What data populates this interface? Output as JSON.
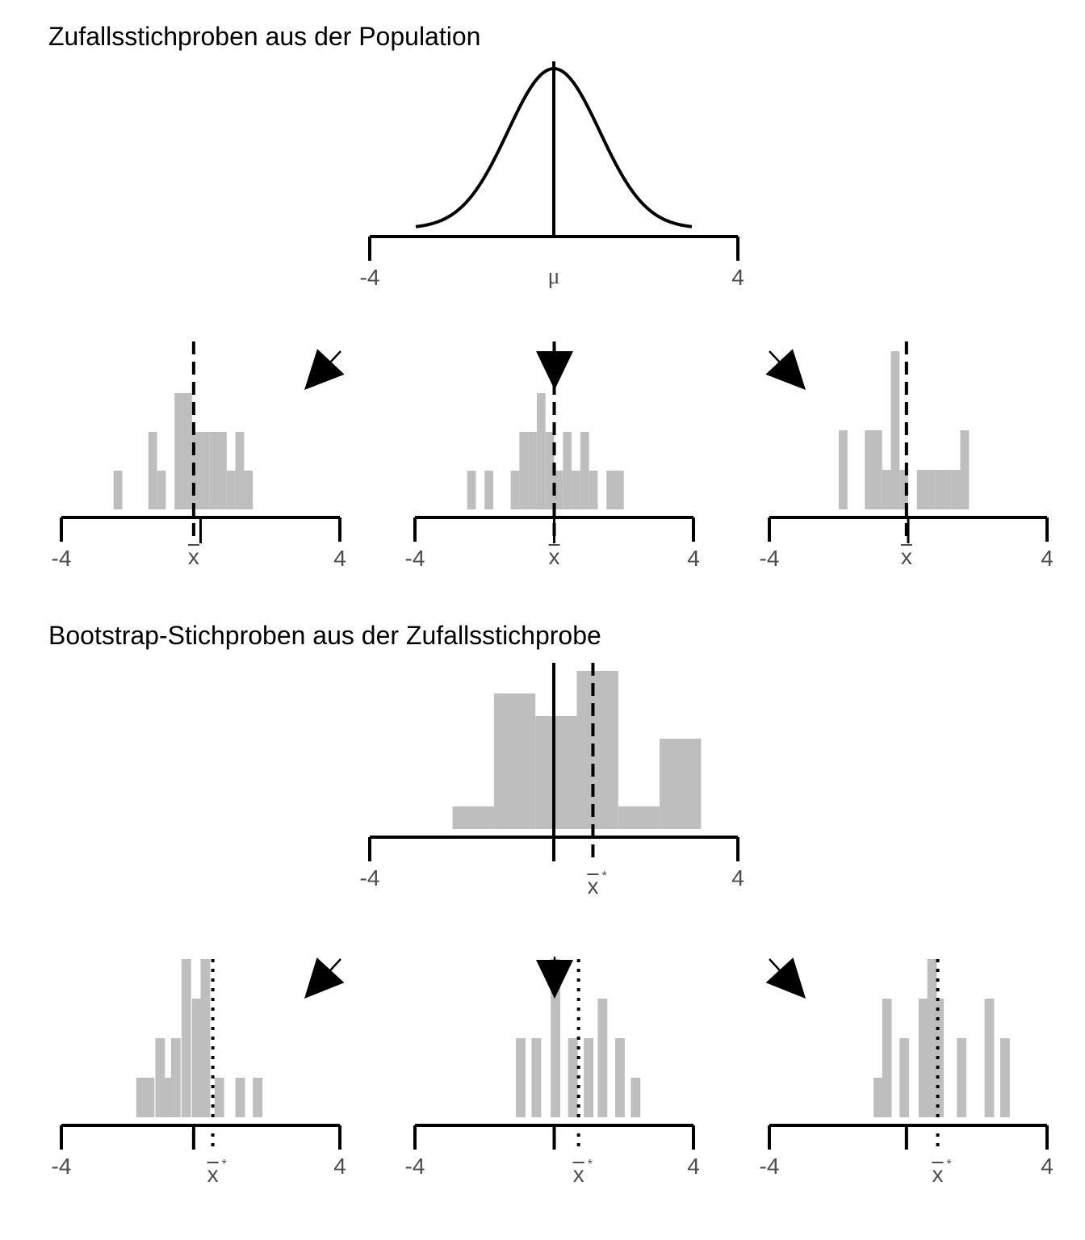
{
  "titles": {
    "top": "Zufallsstichproben aus der Population",
    "bottom": "Bootstrap-Stichproben aus der Zufallsstichprobe"
  },
  "axis": {
    "min_label": "-4",
    "max_label": "4",
    "range": [
      -4,
      4
    ]
  },
  "symbols": {
    "mu": "μ",
    "xbar": "x",
    "xbar_star": "x",
    "star": "*"
  },
  "colors": {
    "bar": "#bebebe",
    "line": "#000000",
    "tick_text": "#4d4d4d"
  },
  "chart_data": [
    {
      "id": "population",
      "type": "line",
      "title": "Zufallsstichproben aus der Population",
      "curve": "normal density (mean 0, sd 1)",
      "x_range": [
        -3,
        3
      ],
      "mean_line": 0,
      "mean_label": "μ",
      "xlim": [
        -4,
        4
      ]
    },
    {
      "id": "sample-1",
      "type": "bar",
      "bin_width": 0.25,
      "bins": [
        [
          -2.5,
          1
        ],
        [
          -1.5,
          2
        ],
        [
          -1.25,
          1
        ],
        [
          -0.75,
          3
        ],
        [
          -0.5,
          3
        ],
        [
          -0.25,
          2
        ],
        [
          0,
          2
        ],
        [
          0.25,
          2
        ],
        [
          0.5,
          2
        ],
        [
          0.75,
          1
        ],
        [
          1,
          2
        ],
        [
          1.25,
          1
        ]
      ],
      "sample_mean": -0.2,
      "pop_mean": 0,
      "xbar_label": "x",
      "xlim": [
        -4,
        4
      ]
    },
    {
      "id": "sample-2",
      "type": "bar",
      "bin_width": 0.25,
      "bins": [
        [
          -2.5,
          1
        ],
        [
          -2,
          1
        ],
        [
          -1.25,
          1
        ],
        [
          -1,
          2
        ],
        [
          -0.75,
          2
        ],
        [
          -0.5,
          3
        ],
        [
          -0.25,
          2
        ],
        [
          0,
          1
        ],
        [
          0.25,
          2
        ],
        [
          0.5,
          1
        ],
        [
          0.75,
          2
        ],
        [
          1,
          1
        ],
        [
          1.5,
          1
        ],
        [
          1.75,
          1
        ]
      ],
      "sample_mean": 0,
      "pop_mean": 0,
      "xbar_label": "x",
      "xlim": [
        -4,
        4
      ]
    },
    {
      "id": "sample-3",
      "type": "bar",
      "bin_width": 0.25,
      "bins": [
        [
          -2,
          2
        ],
        [
          -1.25,
          2
        ],
        [
          -1,
          2
        ],
        [
          -0.75,
          1
        ],
        [
          -0.5,
          4
        ],
        [
          -0.25,
          1
        ],
        [
          0.25,
          1
        ],
        [
          0.5,
          1
        ],
        [
          0.75,
          1
        ],
        [
          1,
          1
        ],
        [
          1.25,
          1
        ],
        [
          1.5,
          2
        ]
      ],
      "sample_mean": -0.05,
      "pop_mean": 0,
      "xbar_label": "x",
      "xlim": [
        -4,
        4
      ]
    },
    {
      "id": "bootstrap-source",
      "type": "bar",
      "bin_width": 0.9,
      "bins": [
        [
          -2.2,
          1
        ],
        [
          -1.3,
          6
        ],
        [
          -0.4,
          5
        ],
        [
          0.5,
          7
        ],
        [
          1.4,
          1
        ],
        [
          2.3,
          4
        ]
      ],
      "pop_mean": 0,
      "sample_mean": 0.85,
      "xbar_label": "x",
      "star": "*",
      "xlim": [
        -4,
        4
      ]
    },
    {
      "id": "bootstrap-1",
      "type": "bar",
      "bin_width": 0.275,
      "bins": [
        [
          -1.85,
          1
        ],
        [
          -1.6,
          1
        ],
        [
          -1.3,
          2
        ],
        [
          -1.05,
          1
        ],
        [
          -0.85,
          2
        ],
        [
          -0.55,
          4
        ],
        [
          -0.25,
          3
        ],
        [
          0,
          4
        ],
        [
          0.4,
          1
        ],
        [
          1,
          1
        ],
        [
          1.5,
          1
        ]
      ],
      "sample_mean": -0.2,
      "boot_mean": 0.35,
      "xbar_label": "x",
      "star": "*",
      "xlim": [
        -4,
        4
      ]
    },
    {
      "id": "bootstrap-2",
      "type": "bar",
      "bin_width": 0.275,
      "bins": [
        [
          -1.1,
          2
        ],
        [
          -0.65,
          2
        ],
        [
          -0.1,
          4
        ],
        [
          0.4,
          2
        ],
        [
          0.85,
          2
        ],
        [
          1.25,
          3
        ],
        [
          1.75,
          2
        ],
        [
          2.2,
          1
        ]
      ],
      "sample_mean": 0,
      "boot_mean": 0.7,
      "xbar_label": "x",
      "star": "*",
      "xlim": [
        -4,
        4
      ]
    },
    {
      "id": "bootstrap-3",
      "type": "bar",
      "bin_width": 0.275,
      "bins": [
        [
          -1,
          1
        ],
        [
          -0.75,
          3
        ],
        [
          -0.25,
          2
        ],
        [
          0.3,
          3
        ],
        [
          0.55,
          4
        ],
        [
          0.75,
          3
        ],
        [
          1.4,
          2
        ],
        [
          2.2,
          3
        ],
        [
          2.65,
          2
        ]
      ],
      "sample_mean": -0.05,
      "boot_mean": 0.85,
      "xbar_label": "x",
      "star": "*",
      "xlim": [
        -4,
        4
      ]
    }
  ]
}
